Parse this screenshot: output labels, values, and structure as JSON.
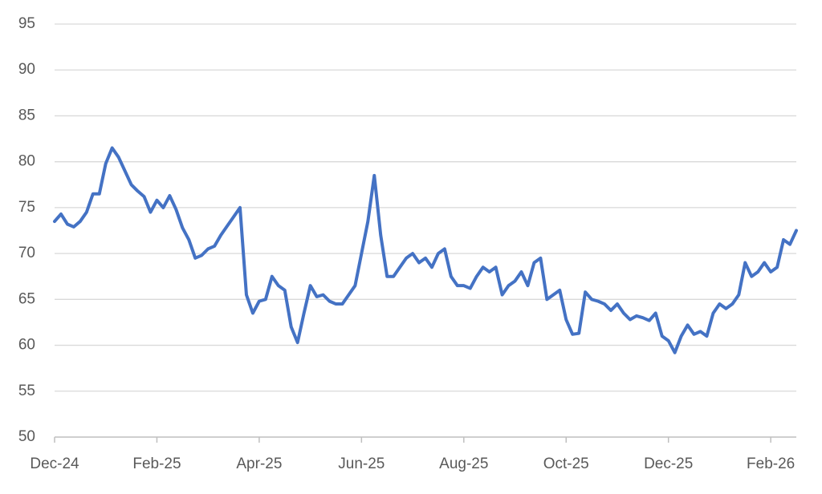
{
  "chart_data": {
    "type": "line",
    "categories": [
      "Dec-24",
      null,
      null,
      null,
      null,
      null,
      null,
      null,
      null,
      null,
      null,
      null,
      null,
      null,
      null,
      null,
      "Feb-25",
      null,
      null,
      null,
      null,
      null,
      null,
      null,
      null,
      null,
      null,
      null,
      null,
      null,
      null,
      null,
      "Apr-25",
      null,
      null,
      null,
      null,
      null,
      null,
      null,
      null,
      null,
      null,
      null,
      null,
      null,
      null,
      null,
      "Jun-25",
      null,
      null,
      null,
      null,
      null,
      null,
      null,
      null,
      null,
      null,
      null,
      null,
      null,
      null,
      null,
      "Aug-25",
      null,
      null,
      null,
      null,
      null,
      null,
      null,
      null,
      null,
      null,
      null,
      null,
      null,
      null,
      null,
      "Oct-25",
      null,
      null,
      null,
      null,
      null,
      null,
      null,
      null,
      null,
      null,
      null,
      null,
      null,
      null,
      null,
      "Dec-25",
      null,
      null,
      null,
      null,
      null,
      null,
      null,
      null,
      null,
      null,
      null,
      null,
      null,
      null,
      null,
      "Feb-26",
      null,
      null,
      null,
      null
    ],
    "values": [
      73.5,
      74.3,
      73.2,
      72.9,
      73.5,
      74.5,
      76.5,
      76.5,
      79.8,
      81.5,
      80.5,
      79,
      77.5,
      76.8,
      76.2,
      74.5,
      75.8,
      75,
      76.3,
      74.8,
      72.8,
      71.5,
      69.5,
      69.8,
      70.5,
      70.8,
      72,
      73,
      74,
      75,
      65.5,
      63.5,
      64.8,
      65,
      67.5,
      66.5,
      66,
      62,
      60.3,
      63.5,
      66.5,
      65.3,
      65.5,
      64.8,
      64.5,
      64.5,
      65.5,
      66.5,
      70,
      73.5,
      78.5,
      72,
      67.5,
      67.5,
      68.5,
      69.5,
      70,
      69,
      69.5,
      68.5,
      70,
      70.5,
      67.5,
      66.5,
      66.5,
      66.2,
      67.5,
      68.5,
      68,
      68.5,
      65.5,
      66.5,
      67,
      68,
      66.5,
      69,
      69.5,
      65,
      65.5,
      66,
      62.8,
      61.2,
      61.3,
      65.8,
      65,
      64.8,
      64.5,
      63.8,
      64.5,
      63.5,
      62.8,
      63.2,
      63,
      62.7,
      63.5,
      61,
      60.5,
      59.2,
      61,
      62.2,
      61.2,
      61.5,
      61,
      63.5,
      64.5,
      64,
      64.5,
      65.5,
      69,
      67.5,
      68,
      69,
      68,
      68.5,
      71.5,
      71,
      72.5
    ],
    "color": "#4472c4",
    "ylim": [
      50,
      95
    ],
    "yticks": [
      50,
      55,
      60,
      65,
      70,
      75,
      80,
      85,
      90,
      95
    ],
    "grid": true
  }
}
